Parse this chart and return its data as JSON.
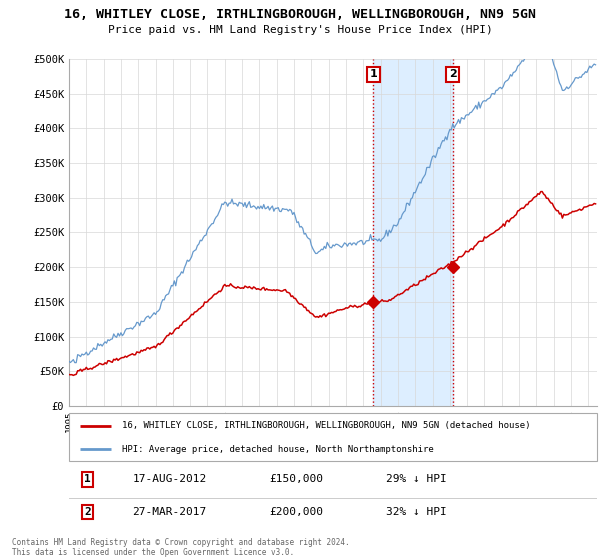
{
  "title1": "16, WHITLEY CLOSE, IRTHLINGBOROUGH, WELLINGBOROUGH, NN9 5GN",
  "title2": "Price paid vs. HM Land Registry's House Price Index (HPI)",
  "legend1": "16, WHITLEY CLOSE, IRTHLINGBOROUGH, WELLINGBOROUGH, NN9 5GN (detached house)",
  "legend2": "HPI: Average price, detached house, North Northamptonshire",
  "transaction1_date": "17-AUG-2012",
  "transaction1_price": 150000,
  "transaction1_hpi": "29% ↓ HPI",
  "transaction2_date": "27-MAR-2017",
  "transaction2_price": 200000,
  "transaction2_hpi": "32% ↓ HPI",
  "footnote": "Contains HM Land Registry data © Crown copyright and database right 2024.\nThis data is licensed under the Open Government Licence v3.0.",
  "background_color": "#ffffff",
  "plot_bg_color": "#ffffff",
  "grid_color": "#d8d8d8",
  "red_color": "#cc0000",
  "blue_color": "#6699cc",
  "shade_color": "#ddeeff",
  "ylim": [
    0,
    500000
  ],
  "yticks": [
    0,
    50000,
    100000,
    150000,
    200000,
    250000,
    300000,
    350000,
    400000,
    450000,
    500000
  ],
  "ytick_labels": [
    "£0",
    "£50K",
    "£100K",
    "£150K",
    "£200K",
    "£250K",
    "£300K",
    "£350K",
    "£400K",
    "£450K",
    "£500K"
  ],
  "xlim_start": 1995,
  "xlim_end": 2025.5,
  "t1_year": 2012,
  "t1_month": 8,
  "t2_year": 2017,
  "t2_month": 3
}
